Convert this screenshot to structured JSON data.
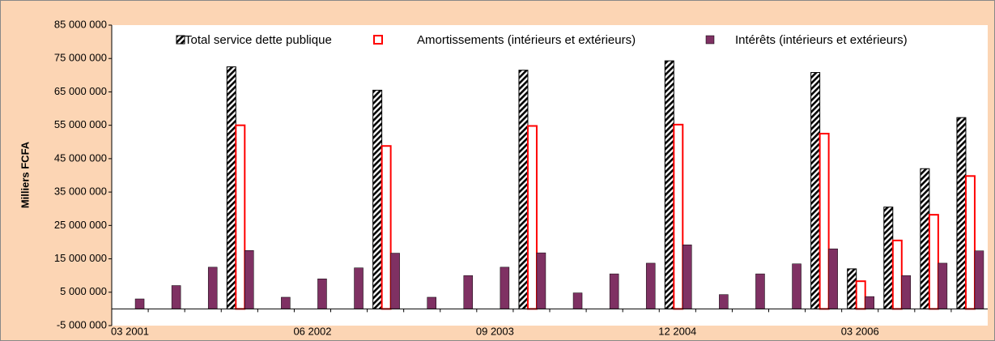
{
  "chart_data": {
    "type": "bar",
    "y_axis_label": "Milliers FCFA",
    "categories": [
      "03 2001",
      null,
      null,
      null,
      null,
      "06 2002",
      null,
      null,
      null,
      null,
      "09 2003",
      null,
      null,
      null,
      null,
      "12 2004",
      null,
      null,
      null,
      null,
      "03 2006",
      null,
      null,
      null
    ],
    "series": [
      {
        "name": "Total service dette publique",
        "color": "#000000",
        "values": [
          null,
          null,
          null,
          72500000,
          null,
          null,
          null,
          65500000,
          null,
          null,
          null,
          71500000,
          null,
          null,
          null,
          74300000,
          null,
          null,
          null,
          70800000,
          12000000,
          30500000,
          42000000,
          57300000
        ]
      },
      {
        "name": "Amortissements (intérieurs et extérieurs)",
        "color": "#ff0000",
        "values": [
          null,
          null,
          null,
          55000000,
          null,
          null,
          null,
          48800000,
          null,
          null,
          null,
          54800000,
          null,
          null,
          null,
          55200000,
          null,
          null,
          null,
          52500000,
          8300000,
          20500000,
          28200000,
          39800000
        ]
      },
      {
        "name": "Intérêts (intérieurs et extérieurs)",
        "color": "#7f3163",
        "values": [
          3000000,
          7000000,
          12500000,
          17500000,
          3500000,
          9000000,
          12300000,
          16700000,
          3500000,
          10000000,
          12500000,
          16800000,
          4800000,
          10500000,
          13700000,
          19200000,
          4300000,
          10500000,
          13500000,
          18000000,
          3700000,
          10000000,
          13700000,
          17400000
        ]
      }
    ],
    "ylim": [
      -5000000,
      85000000
    ],
    "yticks": [
      {
        "value": -5000000,
        "label": "-5 000 000"
      },
      {
        "value": 5000000,
        "label": "5 000 000"
      },
      {
        "value": 15000000,
        "label": "15 000 000"
      },
      {
        "value": 25000000,
        "label": "25 000 000"
      },
      {
        "value": 35000000,
        "label": "35 000 000"
      },
      {
        "value": 45000000,
        "label": "45 000 000"
      },
      {
        "value": 55000000,
        "label": "55 000 000"
      },
      {
        "value": 65000000,
        "label": "65 000 000"
      },
      {
        "value": 75000000,
        "label": "75 000 000"
      },
      {
        "value": 85000000,
        "label": "85 000 000"
      }
    ],
    "grid": false,
    "legend": "top"
  }
}
